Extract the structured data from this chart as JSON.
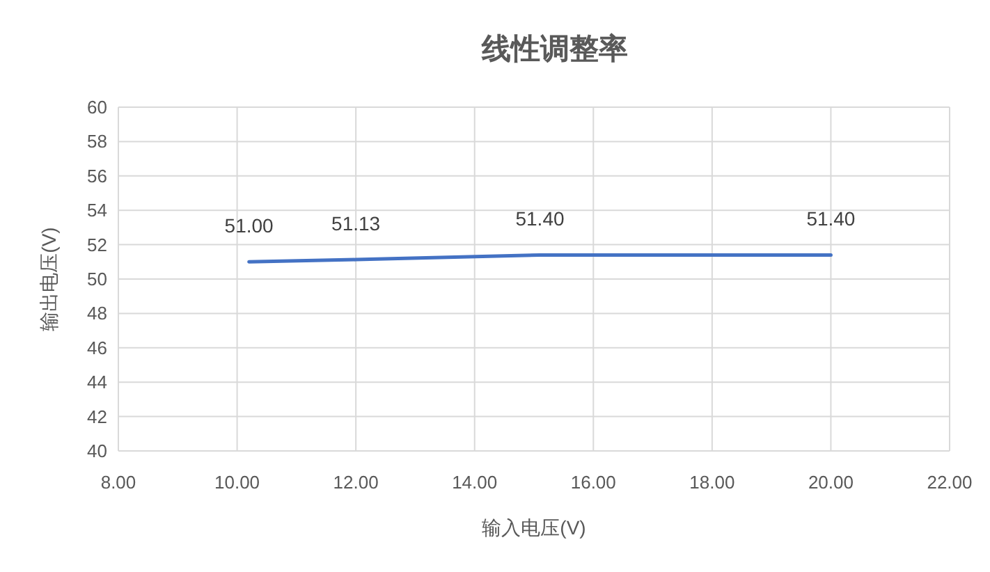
{
  "chart_data": {
    "type": "line",
    "title": "线性调整率",
    "xlabel": "输入电压(V)",
    "ylabel": "输出电压(V)",
    "x": [
      10.2,
      12,
      15.1,
      20
    ],
    "series": [
      {
        "color": "#4472c4",
        "values": [
          51.0,
          51.13,
          51.4,
          51.4
        ],
        "value_labels": [
          "51.00",
          "51.13",
          "51.40",
          "51.40"
        ]
      }
    ],
    "xlim": [
      8,
      22
    ],
    "xticks": [
      {
        "value": 8,
        "label": "8.00"
      },
      {
        "value": 10,
        "label": "10.00"
      },
      {
        "value": 12,
        "label": "12.00"
      },
      {
        "value": 14,
        "label": "14.00"
      },
      {
        "value": 16,
        "label": "16.00"
      },
      {
        "value": 18,
        "label": "18.00"
      },
      {
        "value": 20,
        "label": "20.00"
      },
      {
        "value": 22,
        "label": "22.00"
      }
    ],
    "ylim": [
      40,
      60
    ],
    "yticks": [
      40,
      42,
      44,
      46,
      48,
      50,
      52,
      54,
      56,
      58,
      60
    ],
    "grid": true,
    "line_style": "solid"
  }
}
